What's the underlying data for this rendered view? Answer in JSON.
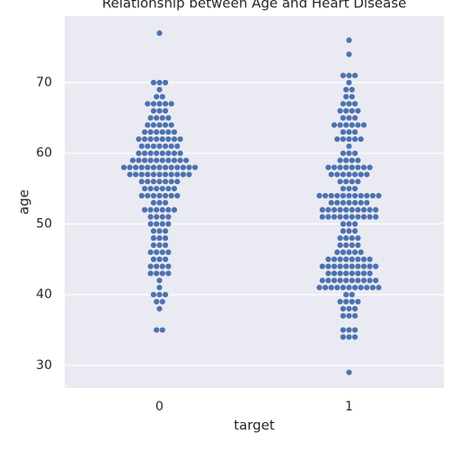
{
  "chart_data": {
    "type": "swarm",
    "title": "Relationship between Age and Heart Disease",
    "x_label": "target",
    "y_label": "age",
    "categories": [
      "0",
      "1"
    ],
    "color": "#4c72b0",
    "values": [
      [
        77,
        70,
        70,
        70,
        69,
        68,
        68,
        67,
        67,
        67,
        67,
        67,
        66,
        66,
        66,
        65,
        65,
        65,
        65,
        64,
        64,
        64,
        64,
        64,
        63,
        63,
        63,
        63,
        63,
        63,
        62,
        62,
        62,
        62,
        62,
        62,
        62,
        62,
        61,
        61,
        61,
        61,
        61,
        61,
        61,
        60,
        60,
        60,
        60,
        60,
        60,
        60,
        60,
        59,
        59,
        59,
        59,
        59,
        59,
        59,
        59,
        59,
        59,
        58,
        58,
        58,
        58,
        58,
        58,
        58,
        58,
        58,
        58,
        58,
        58,
        58,
        57,
        57,
        57,
        57,
        57,
        57,
        57,
        57,
        57,
        57,
        57,
        56,
        56,
        56,
        56,
        56,
        56,
        56,
        55,
        55,
        55,
        55,
        55,
        55,
        54,
        54,
        54,
        54,
        54,
        54,
        54,
        53,
        53,
        53,
        52,
        52,
        52,
        52,
        52,
        52,
        51,
        51,
        51,
        51,
        50,
        50,
        50,
        50,
        49,
        49,
        49,
        48,
        48,
        48,
        47,
        47,
        47,
        46,
        46,
        46,
        46,
        45,
        45,
        45,
        44,
        44,
        44,
        44,
        43,
        43,
        43,
        43,
        42,
        41,
        40,
        40,
        40,
        39,
        39,
        38,
        35,
        35
      ],
      [
        76,
        74,
        71,
        71,
        71,
        70,
        69,
        69,
        68,
        68,
        67,
        67,
        67,
        66,
        66,
        66,
        66,
        65,
        65,
        65,
        64,
        64,
        64,
        64,
        64,
        64,
        63,
        63,
        63,
        62,
        62,
        62,
        62,
        62,
        61,
        60,
        60,
        60,
        59,
        59,
        59,
        59,
        58,
        58,
        58,
        58,
        58,
        58,
        58,
        58,
        57,
        57,
        57,
        57,
        57,
        57,
        57,
        56,
        56,
        56,
        56,
        55,
        55,
        55,
        54,
        54,
        54,
        54,
        54,
        54,
        54,
        54,
        54,
        54,
        54,
        53,
        53,
        53,
        53,
        53,
        53,
        53,
        52,
        52,
        52,
        52,
        52,
        52,
        52,
        52,
        52,
        52,
        51,
        51,
        51,
        51,
        51,
        51,
        51,
        51,
        51,
        51,
        50,
        50,
        50,
        49,
        49,
        49,
        48,
        48,
        48,
        48,
        47,
        47,
        47,
        47,
        46,
        46,
        46,
        46,
        46,
        45,
        45,
        45,
        45,
        45,
        45,
        45,
        45,
        44,
        44,
        44,
        44,
        44,
        44,
        44,
        44,
        44,
        44,
        43,
        43,
        43,
        43,
        43,
        43,
        43,
        43,
        42,
        42,
        42,
        42,
        42,
        42,
        42,
        42,
        42,
        42,
        41,
        41,
        41,
        41,
        41,
        41,
        41,
        41,
        41,
        41,
        41,
        40,
        40,
        39,
        39,
        39,
        39,
        38,
        38,
        38,
        37,
        37,
        37,
        35,
        35,
        35,
        34,
        34,
        34,
        29
      ]
    ],
    "ylim": [
      26.8,
      79.4
    ],
    "yticks": [
      30,
      40,
      50,
      60,
      70
    ],
    "grid": true
  }
}
